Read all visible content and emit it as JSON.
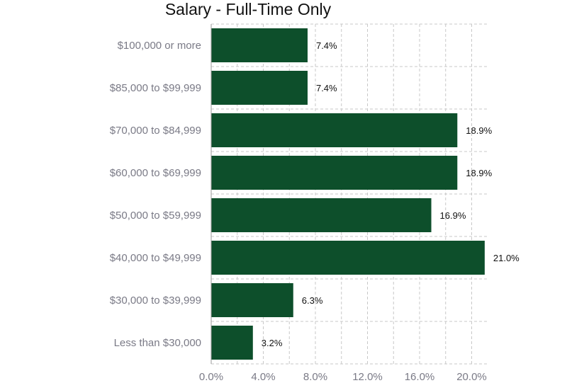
{
  "chart_data": {
    "type": "bar",
    "orientation": "horizontal",
    "title": "Salary - Full-Time Only",
    "categories": [
      "$100,000 or more",
      "$85,000 to $99,999",
      "$70,000 to $84,999",
      "$60,000 to $69,999",
      "$50,000 to $59,999",
      "$40,000 to $49,999",
      "$30,000 to $39,999",
      "Less than $30,000"
    ],
    "values": [
      7.4,
      7.4,
      18.9,
      18.9,
      16.9,
      21.0,
      6.3,
      3.2
    ],
    "value_labels": [
      "7.4%",
      "7.4%",
      "18.9%",
      "18.9%",
      "16.9%",
      "21.0%",
      "6.3%",
      "3.2%"
    ],
    "xticks": [
      0,
      4,
      8,
      12,
      16,
      20
    ],
    "xtick_labels": [
      "0.0%",
      "4.0%",
      "8.0%",
      "12.0%",
      "16.0%",
      "20.0%"
    ],
    "xlim": [
      0,
      21
    ],
    "grid": true,
    "bar_color": "#0d4f2b",
    "grid_color": "#c8c8c8"
  }
}
